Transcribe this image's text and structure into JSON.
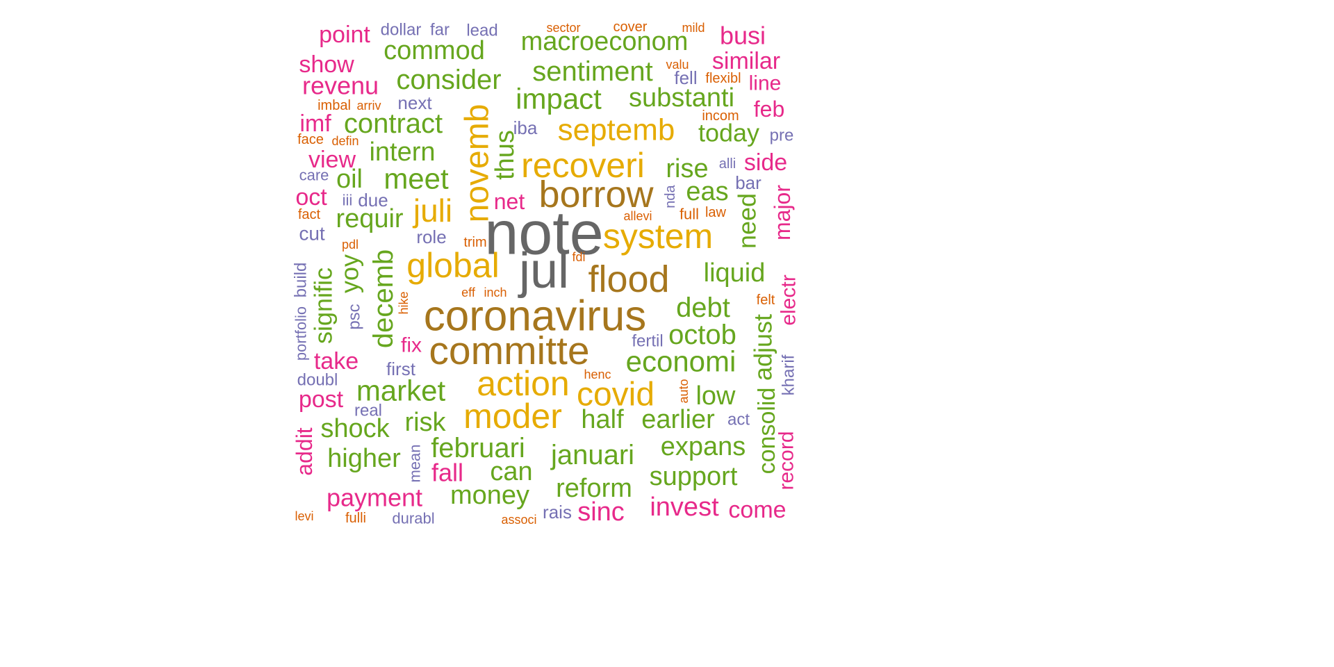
{
  "palette": {
    "gray": "#666666",
    "brown": "#A6761D",
    "gold": "#E6AB02",
    "green": "#66A61E",
    "magenta": "#E7298A",
    "purple": "#7570B3",
    "orange": "#D95F02"
  },
  "words": [
    {
      "text": "note",
      "color": "gray"
    },
    {
      "text": "jul",
      "color": "gray"
    },
    {
      "text": "coronavirus",
      "color": "brown"
    },
    {
      "text": "committe",
      "color": "brown"
    },
    {
      "text": "borrow",
      "color": "brown"
    },
    {
      "text": "flood",
      "color": "brown"
    },
    {
      "text": "action",
      "color": "gold"
    },
    {
      "text": "global",
      "color": "gold"
    },
    {
      "text": "system",
      "color": "gold"
    },
    {
      "text": "recoveri",
      "color": "gold"
    },
    {
      "text": "moder",
      "color": "gold"
    },
    {
      "text": "covid",
      "color": "gold"
    },
    {
      "text": "septemb",
      "color": "gold"
    },
    {
      "text": "novemb",
      "color": "gold"
    },
    {
      "text": "juli",
      "color": "gold"
    },
    {
      "text": "economi",
      "color": "green"
    },
    {
      "text": "market",
      "color": "green"
    },
    {
      "text": "meet",
      "color": "green"
    },
    {
      "text": "impact",
      "color": "green"
    },
    {
      "text": "sentiment",
      "color": "green"
    },
    {
      "text": "macroeconom",
      "color": "green"
    },
    {
      "text": "februari",
      "color": "green"
    },
    {
      "text": "januari",
      "color": "green"
    },
    {
      "text": "consider",
      "color": "green"
    },
    {
      "text": "contract",
      "color": "green"
    },
    {
      "text": "substanti",
      "color": "green"
    },
    {
      "text": "commod",
      "color": "green"
    },
    {
      "text": "intern",
      "color": "green"
    },
    {
      "text": "requir",
      "color": "green"
    },
    {
      "text": "debt",
      "color": "green"
    },
    {
      "text": "octob",
      "color": "green"
    },
    {
      "text": "liquid",
      "color": "green"
    },
    {
      "text": "reform",
      "color": "green"
    },
    {
      "text": "support",
      "color": "green"
    },
    {
      "text": "expans",
      "color": "green"
    },
    {
      "text": "earlier",
      "color": "green"
    },
    {
      "text": "half",
      "color": "green"
    },
    {
      "text": "risk",
      "color": "green"
    },
    {
      "text": "shock",
      "color": "green"
    },
    {
      "text": "higher",
      "color": "green"
    },
    {
      "text": "money",
      "color": "green"
    },
    {
      "text": "can",
      "color": "green"
    },
    {
      "text": "today",
      "color": "green"
    },
    {
      "text": "rise",
      "color": "green"
    },
    {
      "text": "eas",
      "color": "green"
    },
    {
      "text": "low",
      "color": "green"
    },
    {
      "text": "oil",
      "color": "green"
    },
    {
      "text": "thus",
      "color": "green"
    },
    {
      "text": "need",
      "color": "green"
    },
    {
      "text": "decemb",
      "color": "green"
    },
    {
      "text": "signific",
      "color": "green"
    },
    {
      "text": "yoy",
      "color": "green"
    },
    {
      "text": "adjust",
      "color": "green"
    },
    {
      "text": "consolid",
      "color": "green"
    },
    {
      "text": "invest",
      "color": "magenta"
    },
    {
      "text": "payment",
      "color": "magenta"
    },
    {
      "text": "revenu",
      "color": "magenta"
    },
    {
      "text": "similar",
      "color": "magenta"
    },
    {
      "text": "busi",
      "color": "magenta"
    },
    {
      "text": "point",
      "color": "magenta"
    },
    {
      "text": "show",
      "color": "magenta"
    },
    {
      "text": "imf",
      "color": "magenta"
    },
    {
      "text": "view",
      "color": "magenta"
    },
    {
      "text": "oct",
      "color": "magenta"
    },
    {
      "text": "take",
      "color": "magenta"
    },
    {
      "text": "post",
      "color": "magenta"
    },
    {
      "text": "fall",
      "color": "magenta"
    },
    {
      "text": "sinc",
      "color": "magenta"
    },
    {
      "text": "come",
      "color": "magenta"
    },
    {
      "text": "side",
      "color": "magenta"
    },
    {
      "text": "feb",
      "color": "magenta"
    },
    {
      "text": "line",
      "color": "magenta"
    },
    {
      "text": "net",
      "color": "magenta"
    },
    {
      "text": "fix",
      "color": "magenta"
    },
    {
      "text": "major",
      "color": "magenta"
    },
    {
      "text": "electr",
      "color": "magenta"
    },
    {
      "text": "record",
      "color": "magenta"
    },
    {
      "text": "addit",
      "color": "magenta"
    },
    {
      "text": "dollar",
      "color": "purple"
    },
    {
      "text": "far",
      "color": "purple"
    },
    {
      "text": "lead",
      "color": "purple"
    },
    {
      "text": "next",
      "color": "purple"
    },
    {
      "text": "iba",
      "color": "purple"
    },
    {
      "text": "fell",
      "color": "purple"
    },
    {
      "text": "pre",
      "color": "purple"
    },
    {
      "text": "alli",
      "color": "purple"
    },
    {
      "text": "bar",
      "color": "purple"
    },
    {
      "text": "care",
      "color": "purple"
    },
    {
      "text": "iii",
      "color": "purple"
    },
    {
      "text": "due",
      "color": "purple"
    },
    {
      "text": "cut",
      "color": "purple"
    },
    {
      "text": "role",
      "color": "purple"
    },
    {
      "text": "first",
      "color": "purple"
    },
    {
      "text": "fertil",
      "color": "purple"
    },
    {
      "text": "doubl",
      "color": "purple"
    },
    {
      "text": "real",
      "color": "purple"
    },
    {
      "text": "act",
      "color": "purple"
    },
    {
      "text": "rais",
      "color": "purple"
    },
    {
      "text": "durabl",
      "color": "purple"
    },
    {
      "text": "nda",
      "color": "purple"
    },
    {
      "text": "psc",
      "color": "purple"
    },
    {
      "text": "build",
      "color": "purple"
    },
    {
      "text": "portfolio",
      "color": "purple"
    },
    {
      "text": "mean",
      "color": "purple"
    },
    {
      "text": "kharif",
      "color": "purple"
    },
    {
      "text": "sector",
      "color": "orange"
    },
    {
      "text": "cover",
      "color": "orange"
    },
    {
      "text": "mild",
      "color": "orange"
    },
    {
      "text": "valu",
      "color": "orange"
    },
    {
      "text": "flexibl",
      "color": "orange"
    },
    {
      "text": "imbal",
      "color": "orange"
    },
    {
      "text": "arriv",
      "color": "orange"
    },
    {
      "text": "incom",
      "color": "orange"
    },
    {
      "text": "face",
      "color": "orange"
    },
    {
      "text": "defin",
      "color": "orange"
    },
    {
      "text": "fact",
      "color": "orange"
    },
    {
      "text": "allevi",
      "color": "orange"
    },
    {
      "text": "full",
      "color": "orange"
    },
    {
      "text": "law",
      "color": "orange"
    },
    {
      "text": "pdl",
      "color": "orange"
    },
    {
      "text": "trim",
      "color": "orange"
    },
    {
      "text": "fdi",
      "color": "orange"
    },
    {
      "text": "eff",
      "color": "orange"
    },
    {
      "text": "inch",
      "color": "orange"
    },
    {
      "text": "felt",
      "color": "orange"
    },
    {
      "text": "henc",
      "color": "orange"
    },
    {
      "text": "levi",
      "color": "orange"
    },
    {
      "text": "fulli",
      "color": "orange"
    },
    {
      "text": "associ",
      "color": "orange"
    },
    {
      "text": "hike",
      "color": "orange"
    },
    {
      "text": "auto",
      "color": "orange"
    }
  ]
}
